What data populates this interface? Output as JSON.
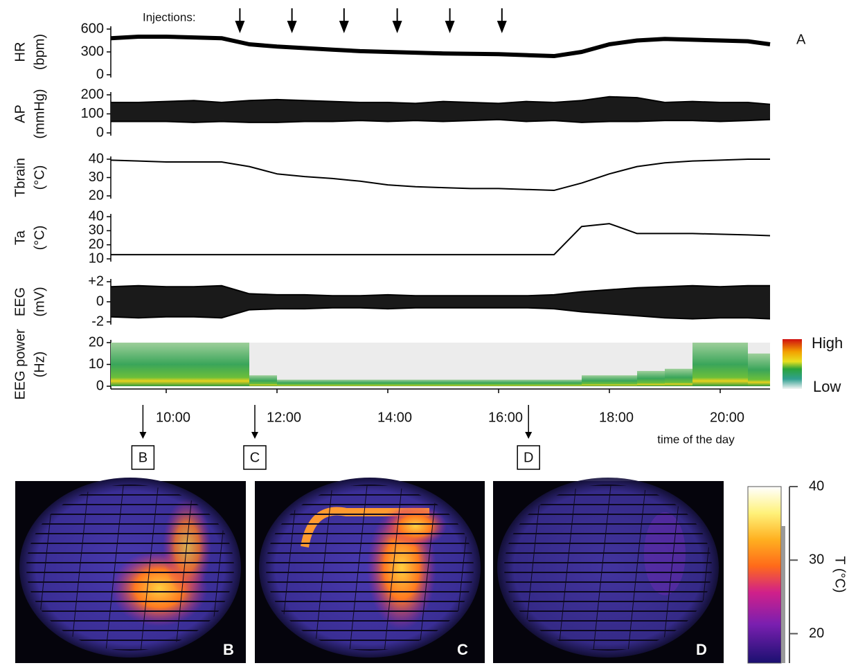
{
  "chart_data": [
    {
      "type": "line",
      "ylabel": [
        "HR",
        "(bpm)"
      ],
      "panel_label": "A",
      "color": "#000000",
      "x": [
        9,
        9.5,
        10,
        10.5,
        11,
        11.5,
        12,
        12.5,
        13,
        13.5,
        14,
        14.5,
        15,
        15.5,
        16,
        16.5,
        17,
        17.5,
        18,
        18.5,
        19,
        19.5,
        20,
        20.5,
        20.9
      ],
      "values": [
        480,
        500,
        500,
        490,
        480,
        400,
        370,
        350,
        330,
        310,
        300,
        290,
        280,
        275,
        270,
        258,
        245,
        300,
        400,
        450,
        470,
        460,
        450,
        440,
        400
      ],
      "xlim": [
        9,
        20.9
      ],
      "ylim": [
        0,
        600
      ],
      "yticks": [
        0,
        300,
        600
      ]
    },
    {
      "type": "band",
      "ylabel": [
        "AP",
        "(mmHg)"
      ],
      "color": "#000000",
      "x": [
        9,
        9.5,
        10,
        10.5,
        11,
        11.5,
        12,
        12.5,
        13,
        13.5,
        14,
        14.5,
        15,
        15.5,
        16,
        16.5,
        17,
        17.5,
        18,
        18.5,
        19,
        19.5,
        20,
        20.5,
        20.9
      ],
      "upper": [
        160,
        160,
        165,
        170,
        160,
        170,
        175,
        170,
        165,
        160,
        160,
        155,
        165,
        160,
        155,
        165,
        160,
        170,
        190,
        185,
        160,
        165,
        160,
        160,
        150
      ],
      "lower": [
        60,
        60,
        60,
        55,
        60,
        55,
        55,
        60,
        60,
        65,
        60,
        65,
        60,
        65,
        70,
        60,
        65,
        55,
        60,
        60,
        65,
        65,
        60,
        65,
        70
      ],
      "xlim": [
        9,
        20.9
      ],
      "ylim": [
        0,
        200
      ],
      "yticks": [
        0,
        100,
        200
      ]
    },
    {
      "type": "line",
      "ylabel": [
        "Tbrain",
        "(°C)"
      ],
      "color": "#000000",
      "x": [
        9,
        9.5,
        10,
        10.5,
        11,
        11.5,
        12,
        12.5,
        13,
        13.5,
        14,
        14.5,
        15,
        15.5,
        16,
        16.5,
        17,
        17.5,
        18,
        18.5,
        19,
        19.5,
        20,
        20.5,
        20.9
      ],
      "values": [
        39.5,
        39,
        38.5,
        38.5,
        38.5,
        36,
        32,
        30.5,
        29.5,
        28,
        26,
        25,
        24.5,
        24,
        24,
        23.5,
        23,
        27,
        32,
        36,
        38,
        39,
        39.5,
        40,
        40
      ],
      "xlim": [
        9,
        20.9
      ],
      "ylim": [
        20,
        40
      ],
      "yticks": [
        20,
        30,
        40
      ]
    },
    {
      "type": "line",
      "ylabel": [
        "Ta",
        "(°C)"
      ],
      "color": "#000000",
      "x": [
        9,
        9.5,
        10,
        10.5,
        11,
        11.5,
        12,
        12.5,
        13,
        13.5,
        14,
        14.5,
        15,
        15.5,
        16,
        16.5,
        17,
        17.5,
        18,
        18.5,
        19,
        19.5,
        20,
        20.5,
        20.9
      ],
      "values": [
        13,
        13,
        13,
        13,
        13,
        13,
        13,
        13,
        13,
        13,
        13,
        13,
        13,
        13,
        13,
        13,
        13,
        33,
        35,
        28,
        28,
        28,
        27.5,
        27,
        26.5
      ],
      "xlim": [
        9,
        20.9
      ],
      "ylim": [
        10,
        40
      ],
      "yticks": [
        10,
        20,
        30,
        40
      ]
    },
    {
      "type": "band",
      "ylabel": [
        "EEG",
        "(mV)"
      ],
      "color": "#000000",
      "x": [
        9,
        9.5,
        10,
        10.5,
        11,
        11.5,
        12,
        12.5,
        13,
        13.5,
        14,
        14.5,
        15,
        15.5,
        16,
        16.5,
        17,
        17.5,
        18,
        18.5,
        19,
        19.5,
        20,
        20.5,
        20.9
      ],
      "upper": [
        1.5,
        1.6,
        1.5,
        1.5,
        1.6,
        0.8,
        0.7,
        0.7,
        0.6,
        0.6,
        0.7,
        0.6,
        0.6,
        0.6,
        0.6,
        0.6,
        0.7,
        1.0,
        1.2,
        1.4,
        1.5,
        1.6,
        1.5,
        1.6,
        1.6
      ],
      "lower": [
        -1.5,
        -1.6,
        -1.5,
        -1.5,
        -1.6,
        -0.8,
        -0.7,
        -0.7,
        -0.6,
        -0.6,
        -0.7,
        -0.6,
        -0.6,
        -0.6,
        -0.6,
        -0.6,
        -0.7,
        -1.0,
        -1.2,
        -1.4,
        -1.6,
        -1.7,
        -1.6,
        -1.6,
        -1.7
      ],
      "xlim": [
        9,
        20.9
      ],
      "ylim": [
        -2,
        2
      ],
      "yticks": [
        -2,
        0,
        {
          "value": 2,
          "label": "+2"
        }
      ]
    },
    {
      "type": "spectrogram",
      "ylabel": [
        "EEG power",
        "(Hz)"
      ],
      "xlabel": "time of the day",
      "x": [
        9,
        9.5,
        10,
        10.5,
        11,
        11.5,
        12,
        12.5,
        13,
        13.5,
        14,
        14.5,
        15,
        15.5,
        16,
        16.5,
        17,
        17.5,
        18,
        18.5,
        19,
        19.5,
        20,
        20.5,
        20.9
      ],
      "values": [
        20,
        20,
        20,
        20,
        20,
        5,
        3,
        3,
        3,
        3,
        3,
        3,
        3,
        3,
        3,
        3,
        3,
        5,
        5,
        7,
        8,
        20,
        20,
        15,
        20
      ],
      "scale_high": "High",
      "scale_low": "Low",
      "xlim": [
        9,
        20.9
      ],
      "ylim": [
        0,
        20
      ],
      "yticks": [
        0,
        10,
        20
      ],
      "xticks": [
        {
          "value": 10,
          "label": "10:00"
        },
        {
          "value": 12,
          "label": "12:00"
        },
        {
          "value": 14,
          "label": "14:00"
        },
        {
          "value": 16,
          "label": "16:00"
        },
        {
          "value": 18,
          "label": "18:00"
        },
        {
          "value": 20,
          "label": "20:00"
        }
      ]
    }
  ],
  "injections": {
    "label": "Injections:",
    "x": [
      11.33,
      12.27,
      13.21,
      14.17,
      15.12,
      16.06
    ]
  },
  "snapshots": [
    {
      "label": "B",
      "x": 9.58
    },
    {
      "label": "C",
      "x": 11.6
    },
    {
      "label": "D",
      "x": 16.54
    }
  ],
  "thermal_scale": {
    "label": "T (°C)",
    "lim": [
      16,
      40
    ],
    "ticks": [
      20,
      30,
      40
    ]
  }
}
